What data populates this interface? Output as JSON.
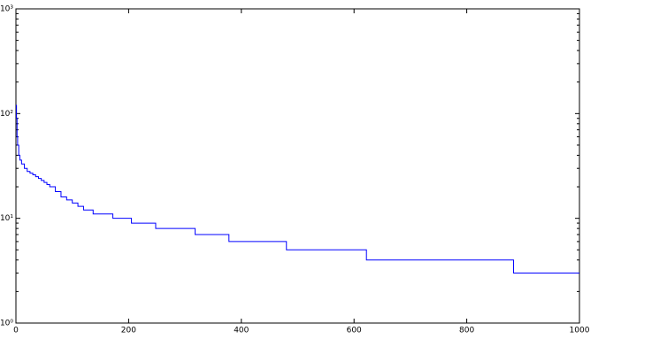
{
  "chart_data": {
    "type": "line",
    "drawstyle": "steps-post",
    "log_y": true,
    "grid": false,
    "x": [
      0,
      1,
      2,
      3,
      5,
      7,
      10,
      15,
      20,
      25,
      30,
      35,
      40,
      45,
      50,
      55,
      60,
      70,
      80,
      90,
      100,
      110,
      120,
      137,
      172,
      205,
      248,
      318,
      378,
      480,
      622,
      883,
      1000
    ],
    "series": [
      {
        "color": "#0000ff",
        "values": [
          120,
          90,
          60,
          50,
          40,
          36,
          33,
          30,
          28,
          27,
          26,
          25,
          24,
          23,
          22,
          21,
          20,
          18,
          16,
          15,
          14,
          13,
          12,
          11,
          10,
          9,
          8,
          7,
          6,
          5,
          4,
          3,
          3
        ]
      }
    ],
    "xlim": [
      0,
      1000
    ],
    "xticks": [
      0,
      200,
      400,
      600,
      800,
      1000
    ],
    "ylim": [
      1,
      1000
    ],
    "yticks": [
      {
        "value": 1,
        "label": "10⁰"
      },
      {
        "value": 10,
        "label": "10¹"
      },
      {
        "value": 100,
        "label": "10²"
      },
      {
        "value": 1000,
        "label": "10³"
      }
    ]
  }
}
